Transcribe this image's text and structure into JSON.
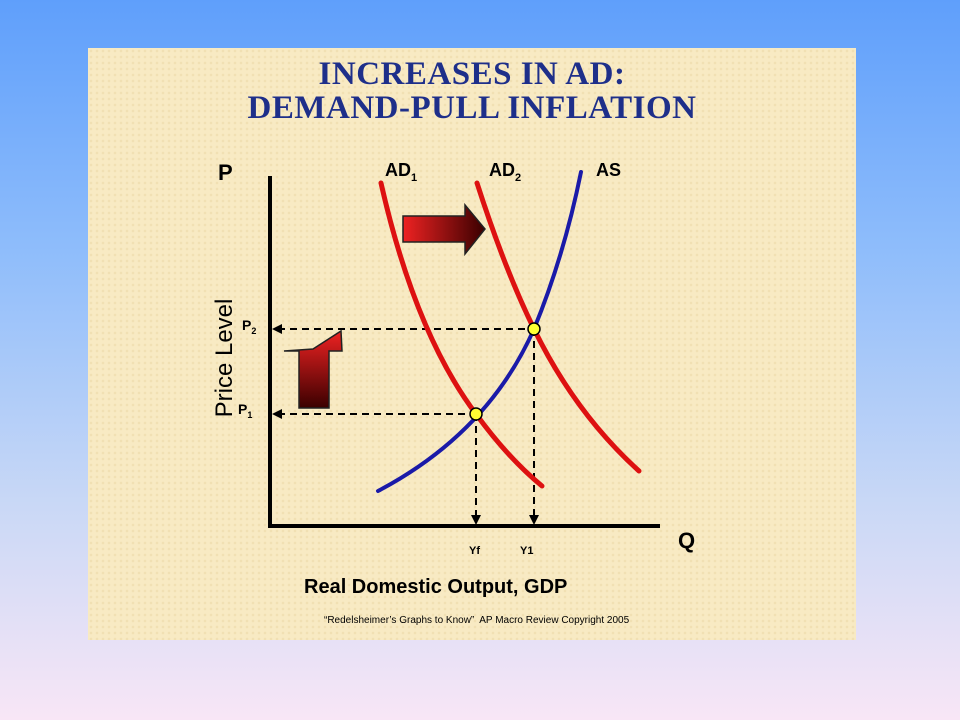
{
  "slide": {
    "title_line1": "INCREASES IN AD:",
    "title_line2": "DEMAND-PULL INFLATION",
    "footer": "“Redelsheimer’s Graphs to Know”  AP Macro Review Copyright 2005"
  },
  "diagram": {
    "y_axis_symbol": "P",
    "x_axis_symbol": "Q",
    "y_axis_label": "Price Level",
    "x_axis_label": "Real Domestic Output, GDP",
    "curves": {
      "ad1": {
        "label": "AD",
        "subscript": "1"
      },
      "ad2": {
        "label": "AD",
        "subscript": "2"
      },
      "as": {
        "label": "AS"
      }
    },
    "price_levels": {
      "p1": {
        "label": "P",
        "subscript": "1"
      },
      "p2": {
        "label": "P",
        "subscript": "2"
      }
    },
    "output_levels": {
      "yf": "Yf",
      "y1": "Y1"
    },
    "colors": {
      "demand_curves": "#dd1111",
      "supply_curve": "#1a1aa8",
      "axes": "#000000",
      "equilibrium_points": "#ffff33",
      "title": "#1e2f8a",
      "arrow_fill_dark": "#3a0000",
      "arrow_fill_light": "#ee2222"
    },
    "shift_arrows": [
      {
        "direction": "right",
        "meaning": "AD shifts right",
        "icon": "shift-right-arrow-icon"
      },
      {
        "direction": "up",
        "meaning": "price level rises",
        "icon": "shift-up-arrow-icon"
      }
    ]
  }
}
